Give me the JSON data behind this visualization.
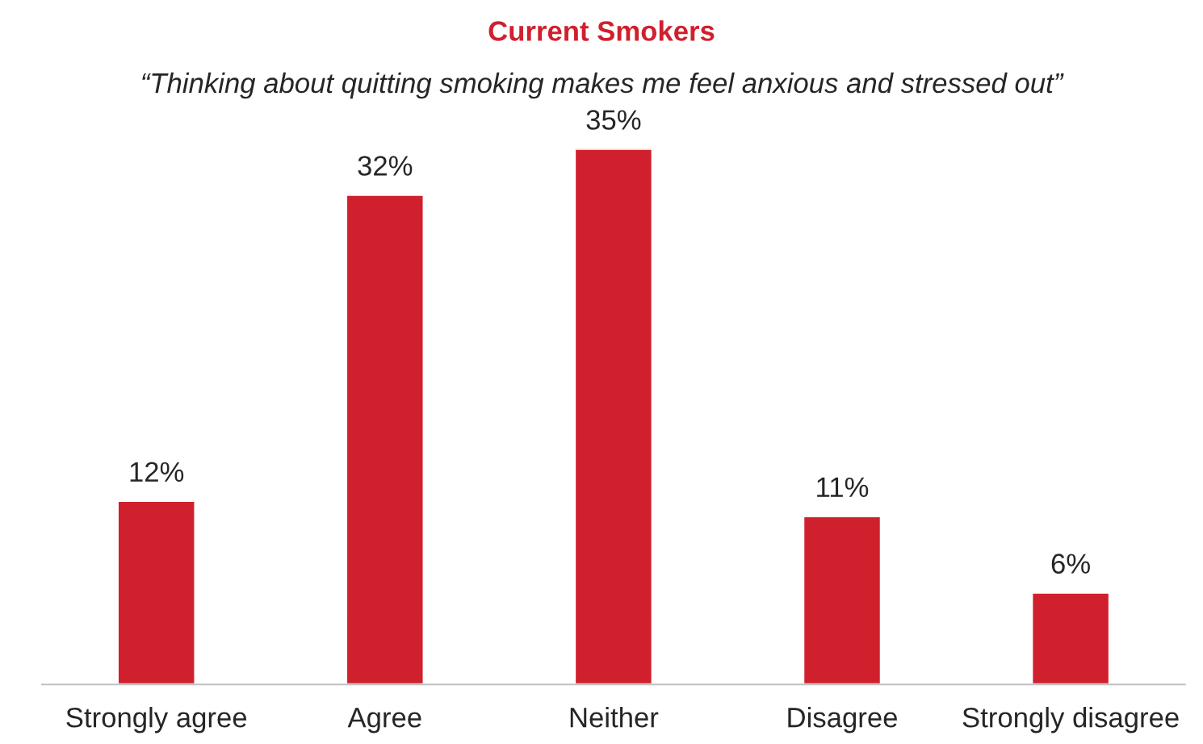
{
  "chart_data": {
    "type": "bar",
    "title": "Current Smokers",
    "subtitle": "“Thinking about quitting smoking makes me feel anxious and stressed out”",
    "categories": [
      "Strongly agree",
      "Agree",
      "Neither",
      "Disagree",
      "Strongly disagree"
    ],
    "values": [
      12,
      32,
      35,
      11,
      6
    ],
    "value_labels": [
      "12%",
      "32%",
      "35%",
      "11%",
      "6%"
    ],
    "color": "#d0202d",
    "grid": false,
    "legend": false
  }
}
